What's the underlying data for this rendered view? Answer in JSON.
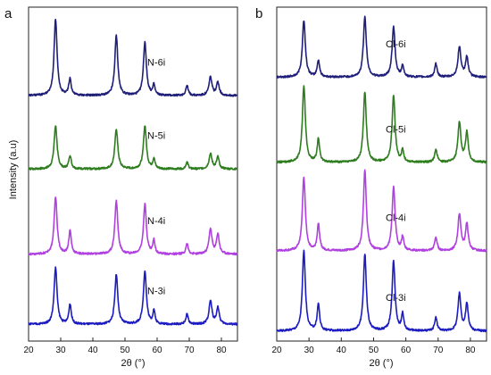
{
  "chart_data": [
    {
      "type": "line",
      "panel_label": "a",
      "xlabel": "2θ (°)",
      "ylabel": "Intensity (a.u)",
      "xlim": [
        20,
        85
      ],
      "x_ticks": [
        20,
        30,
        40,
        50,
        60,
        70,
        80
      ],
      "ylim": [
        0,
        1
      ],
      "y_ticks_shown": false,
      "grid": false,
      "peaks_2theta": [
        28.4,
        32.9,
        47.3,
        56.2,
        59.0,
        69.3,
        76.6,
        78.9
      ],
      "series": [
        {
          "name": "N-6i",
          "color": "#1f1f7a",
          "baseline": 0.735,
          "peak_heights": [
            0.23,
            0.05,
            0.18,
            0.16,
            0.03,
            0.03,
            0.055,
            0.04
          ]
        },
        {
          "name": "N-5i",
          "color": "#2e7d1f",
          "baseline": 0.515,
          "peak_heights": [
            0.13,
            0.04,
            0.12,
            0.13,
            0.03,
            0.02,
            0.045,
            0.035
          ]
        },
        {
          "name": "N-4i",
          "color": "#b040e0",
          "baseline": 0.26,
          "peak_heights": [
            0.17,
            0.07,
            0.16,
            0.15,
            0.04,
            0.03,
            0.075,
            0.06
          ]
        },
        {
          "name": "N-3i",
          "color": "#1c1cc0",
          "baseline": 0.05,
          "peak_heights": [
            0.17,
            0.06,
            0.15,
            0.16,
            0.04,
            0.03,
            0.07,
            0.05
          ]
        }
      ]
    },
    {
      "type": "line",
      "panel_label": "b",
      "xlabel": "2θ (°)",
      "ylabel": "",
      "xlim": [
        20,
        85
      ],
      "x_ticks": [
        20,
        30,
        40,
        50,
        60,
        70,
        80
      ],
      "ylim": [
        0,
        1
      ],
      "y_ticks_shown": false,
      "grid": false,
      "peaks_2theta": [
        28.4,
        32.9,
        47.3,
        56.2,
        59.0,
        69.3,
        76.6,
        78.9
      ],
      "series": [
        {
          "name": "Cl-6i",
          "color": "#1f1f7a",
          "baseline": 0.79,
          "peak_heights": [
            0.17,
            0.05,
            0.18,
            0.15,
            0.035,
            0.04,
            0.09,
            0.06
          ]
        },
        {
          "name": "Cl-5i",
          "color": "#2e7d1f",
          "baseline": 0.535,
          "peak_heights": [
            0.23,
            0.07,
            0.21,
            0.2,
            0.035,
            0.04,
            0.12,
            0.09
          ]
        },
        {
          "name": "Cl-4i",
          "color": "#b040e0",
          "baseline": 0.27,
          "peak_heights": [
            0.22,
            0.08,
            0.24,
            0.19,
            0.04,
            0.04,
            0.11,
            0.08
          ]
        },
        {
          "name": "Cl-3i",
          "color": "#1c1cc0",
          "baseline": 0.03,
          "peak_heights": [
            0.24,
            0.08,
            0.23,
            0.21,
            0.05,
            0.04,
            0.11,
            0.08
          ]
        }
      ]
    }
  ]
}
